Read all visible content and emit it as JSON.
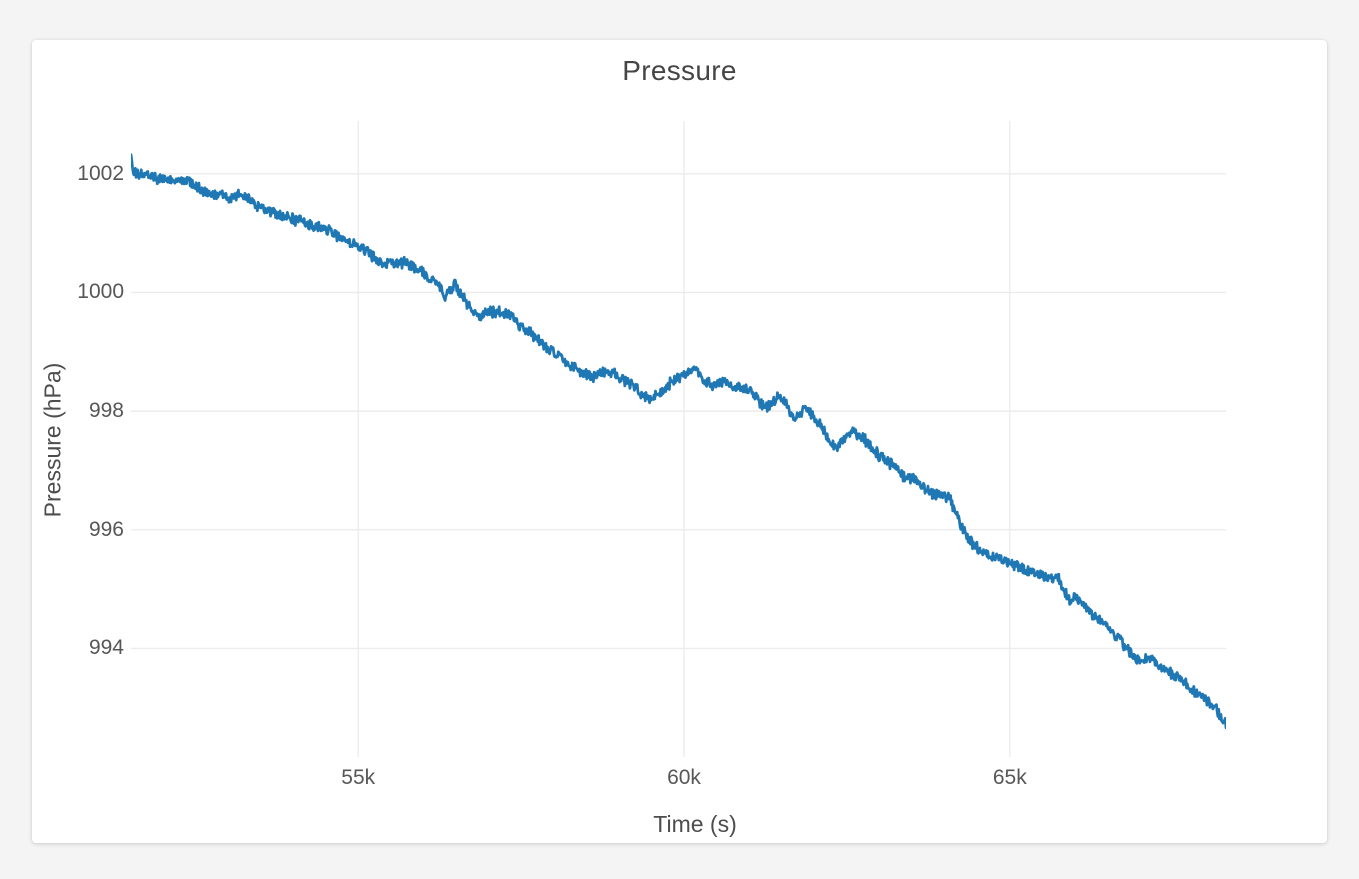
{
  "page": {
    "background_color": "#f4f4f4",
    "card_background_color": "#ffffff",
    "title_text_color": "#454545",
    "tick_text_color": "#575757"
  },
  "chart_data": {
    "type": "line",
    "title": "Pressure",
    "xlabel": "Time (s)",
    "ylabel": "Pressure (hPa)",
    "xlim": [
      51513,
      68318
    ],
    "ylim": [
      992.17,
      1002.89
    ],
    "grid": true,
    "legend": false,
    "grid_color": "#ececec",
    "x_ticks": [
      {
        "value": 55000,
        "label": "55k"
      },
      {
        "value": 60000,
        "label": "60k"
      },
      {
        "value": 65000,
        "label": "65k"
      }
    ],
    "y_ticks": [
      {
        "value": 1002,
        "label": "1002"
      },
      {
        "value": 1000,
        "label": "1000"
      },
      {
        "value": 998,
        "label": "998"
      },
      {
        "value": 996,
        "label": "996"
      },
      {
        "value": 994,
        "label": "994"
      }
    ],
    "series": [
      {
        "name": "Pressure",
        "color": "#1f77b4",
        "line_width": 2.8,
        "noise_hpa": 0.08,
        "x": [
          51513,
          51559,
          51805,
          51958,
          52188,
          52342,
          52572,
          52725,
          52879,
          53032,
          53186,
          53339,
          53493,
          53646,
          53953,
          54260,
          54567,
          54874,
          54997,
          55073,
          55288,
          55488,
          55687,
          55902,
          56056,
          56209,
          56332,
          56485,
          56593,
          56715,
          56869,
          57022,
          57176,
          57329,
          57406,
          57529,
          57682,
          57836,
          57989,
          58143,
          58296,
          58450,
          58603,
          58757,
          58910,
          59064,
          59217,
          59371,
          59524,
          59678,
          59831,
          59985,
          60092,
          60184,
          60292,
          60445,
          60599,
          60752,
          60906,
          61013,
          61167,
          61244,
          61320,
          61397,
          61474,
          61551,
          61627,
          61704,
          61781,
          61858,
          61934,
          62011,
          62088,
          62165,
          62241,
          62318,
          62395,
          62471,
          62548,
          62625,
          62702,
          62778,
          62855,
          62932,
          63009,
          63085,
          63162,
          63239,
          63316,
          63392,
          63469,
          63546,
          63623,
          63699,
          63776,
          63853,
          63930,
          64006,
          64083,
          64129,
          64206,
          64283,
          64360,
          64436,
          64590,
          64743,
          64897,
          65050,
          65204,
          65357,
          65511,
          65664,
          65772,
          65848,
          65925,
          66002,
          66078,
          66232,
          66385,
          66539,
          66692,
          66769,
          66846,
          66922,
          66999,
          67076,
          67153,
          67229,
          67306,
          67460,
          67613,
          67767,
          67843,
          67920,
          67997,
          68074,
          68150,
          68227,
          68318
        ],
        "y": [
          1002.32,
          1002.02,
          1001.96,
          1001.92,
          1001.86,
          1001.9,
          1001.73,
          1001.67,
          1001.64,
          1001.6,
          1001.63,
          1001.56,
          1001.44,
          1001.36,
          1001.26,
          1001.14,
          1001.02,
          1000.85,
          1000.82,
          1000.72,
          1000.55,
          1000.48,
          1000.51,
          1000.42,
          1000.25,
          1000.18,
          999.94,
          1000.13,
          999.95,
          999.72,
          999.6,
          999.68,
          999.68,
          999.64,
          999.5,
          999.4,
          999.28,
          999.1,
          999.0,
          998.86,
          998.75,
          998.62,
          998.58,
          998.65,
          998.65,
          998.53,
          998.42,
          998.26,
          998.2,
          998.34,
          998.52,
          998.57,
          998.66,
          998.7,
          998.53,
          998.42,
          998.5,
          998.42,
          998.38,
          998.36,
          998.16,
          998.06,
          998.12,
          998.2,
          998.25,
          998.2,
          997.98,
          997.9,
          997.95,
          998.02,
          997.98,
          997.9,
          997.78,
          997.65,
          997.5,
          997.4,
          997.46,
          997.52,
          997.65,
          997.63,
          997.58,
          997.52,
          997.41,
          997.32,
          997.24,
          997.18,
          997.1,
          997.06,
          996.96,
          996.9,
          996.88,
          996.85,
          996.79,
          996.68,
          996.62,
          996.6,
          996.62,
          996.56,
          996.56,
          996.4,
          996.18,
          996.0,
          995.86,
          995.76,
          995.64,
          995.56,
          995.5,
          995.42,
          995.33,
          995.28,
          995.24,
          995.18,
          995.17,
          994.93,
          994.82,
          994.86,
          994.77,
          994.62,
          994.48,
          994.31,
          994.14,
          994.03,
          993.94,
          993.86,
          993.78,
          993.81,
          993.84,
          993.77,
          993.69,
          993.58,
          993.5,
          993.35,
          993.24,
          993.18,
          993.13,
          993.08,
          993.01,
          992.87,
          992.72
        ]
      }
    ]
  }
}
